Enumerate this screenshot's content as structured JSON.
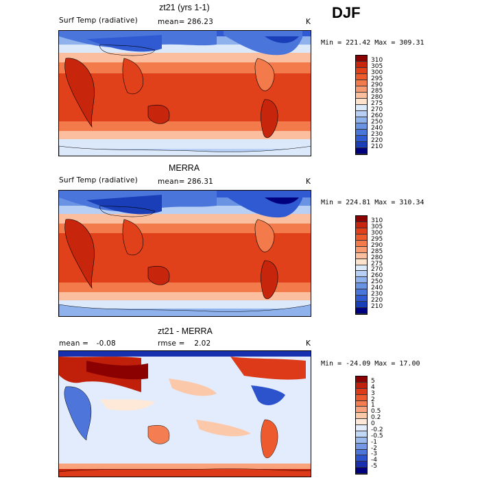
{
  "season": "DJF",
  "panels": [
    {
      "id": "model",
      "title": "zt21 (yrs 1-1)",
      "left_label": "Surf Temp (radiative)",
      "stat_label": "mean=",
      "stat_value": "286.23",
      "unit": "K",
      "range_text": "Min = 221.42  Max = 309.31",
      "colorbar": {
        "levels": [
          "310",
          "305",
          "300",
          "295",
          "290",
          "285",
          "280",
          "275",
          "270",
          "260",
          "250",
          "240",
          "230",
          "220",
          "210"
        ],
        "colors": [
          "#8b0000",
          "#c8260c",
          "#e0401a",
          "#ed5a2c",
          "#f37a4a",
          "#f89a72",
          "#fbbfa0",
          "#fde2cc",
          "#dce9fb",
          "#b8cff5",
          "#90b2ec",
          "#6a94e3",
          "#4a76dc",
          "#2f5ad2",
          "#1a3db8",
          "#00007e"
        ]
      }
    },
    {
      "id": "obs",
      "title": "MERRA",
      "left_label": "Surf Temp (radiative)",
      "stat_label": "mean=",
      "stat_value": "286.31",
      "unit": "K",
      "range_text": "Min = 224.81  Max = 310.34",
      "colorbar": {
        "levels": [
          "310",
          "305",
          "300",
          "295",
          "290",
          "285",
          "280",
          "275",
          "270",
          "260",
          "250",
          "240",
          "230",
          "220",
          "210"
        ],
        "colors": [
          "#8b0000",
          "#c8260c",
          "#e0401a",
          "#ed5a2c",
          "#f37a4a",
          "#f89a72",
          "#fbbfa0",
          "#fde2cc",
          "#dce9fb",
          "#b8cff5",
          "#90b2ec",
          "#6a94e3",
          "#4a76dc",
          "#2f5ad2",
          "#1a3db8",
          "#00007e"
        ]
      }
    },
    {
      "id": "diff",
      "title": "zt21 - MERRA",
      "left_label": "mean =",
      "left_value": "-0.08",
      "stat_label": "rmse =",
      "stat_value": "2.02",
      "unit": "K",
      "range_text": "Min = -24.09  Max =  17.00",
      "colorbar": {
        "levels": [
          "5",
          "4",
          "3",
          "2",
          "1",
          "0.5",
          "0.2",
          "0",
          "-0.2",
          "-0.5",
          "-1",
          "-2",
          "-3",
          "-4",
          "-5"
        ],
        "colors": [
          "#8b0000",
          "#c0200a",
          "#dc3a18",
          "#ec5a2e",
          "#f47e52",
          "#f9a27c",
          "#fcc8aa",
          "#fee8d8",
          "#e2ecfc",
          "#c2d6f6",
          "#9cbaee",
          "#7498e4",
          "#4e76da",
          "#2c52cc",
          "#1630b0",
          "#00007e"
        ]
      }
    }
  ]
}
